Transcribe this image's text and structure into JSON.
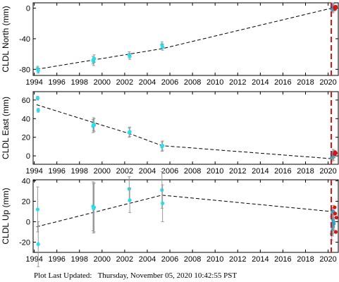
{
  "footer": {
    "label": "Plot Last Updated:",
    "timestamp": "Thursday, November 05, 2020 10:42:55 PST"
  },
  "colors": {
    "campaign": "#22e0f0",
    "continuous": "#2aa3c4",
    "recent": "#dd1111",
    "errorbar": "#999999",
    "trend": "#000000",
    "event_line": "#dd1111"
  },
  "chart_data": [
    {
      "type": "scatter",
      "ylabel": "CLDL North (mm)",
      "xlim": [
        1993.9,
        2020.9
      ],
      "ylim": [
        -88,
        7
      ],
      "xticks": [
        1994,
        1996,
        1998,
        2000,
        2002,
        2004,
        2006,
        2008,
        2010,
        2012,
        2014,
        2016,
        2018,
        2020
      ],
      "yticks": [
        0,
        -40,
        -80
      ],
      "event_line_x": 2020.28,
      "trend": {
        "x": [
          1994.2,
          2005.3,
          2020.3
        ],
        "y": [
          -80,
          -53,
          0
        ]
      },
      "campaign": {
        "x": [
          1994.3,
          1994.35,
          1999.2,
          1999.25,
          1999.3,
          2002.4,
          2002.45,
          2005.3,
          2005.35
        ],
        "y": [
          -79,
          -82,
          -68,
          -70,
          -66,
          -61,
          -63,
          -48,
          -51
        ],
        "err": [
          3,
          3,
          5,
          5,
          5,
          4,
          4,
          4,
          4
        ]
      },
      "continuous": {
        "x": [
          2020.32,
          2020.36,
          2020.4,
          2020.44,
          2020.48,
          2020.52
        ],
        "y": [
          -1,
          1,
          3,
          -2,
          2,
          0
        ],
        "err": [
          4,
          4,
          4,
          4,
          4,
          4
        ]
      },
      "recent": {
        "x": [
          2020.58,
          2020.62,
          2020.68
        ],
        "y": [
          1,
          -1,
          2
        ]
      }
    },
    {
      "type": "scatter",
      "ylabel": "CLDL East (mm)",
      "xlim": [
        1993.9,
        2020.9
      ],
      "ylim": [
        -9,
        69
      ],
      "xticks": [
        1994,
        1996,
        1998,
        2000,
        2002,
        2004,
        2006,
        2008,
        2010,
        2012,
        2014,
        2016,
        2018,
        2020
      ],
      "yticks": [
        60,
        40,
        20,
        0
      ],
      "event_line_x": 2020.28,
      "trend": {
        "x": [
          1994.2,
          1999.2,
          2002.4,
          2005.3,
          2020.3
        ],
        "y": [
          55,
          36,
          24,
          11,
          -3
        ]
      },
      "campaign": {
        "x": [
          1994.3,
          1994.35,
          1999.2,
          1999.25,
          1999.3,
          2002.4,
          2002.45,
          2005.3,
          2005.35
        ],
        "y": [
          62,
          49,
          32,
          34,
          33,
          25,
          26,
          10,
          11
        ],
        "err": [
          2,
          2,
          7,
          7,
          7,
          5,
          5,
          5,
          5
        ]
      },
      "continuous": {
        "x": [
          2020.32,
          2020.36,
          2020.4,
          2020.44,
          2020.48,
          2020.52
        ],
        "y": [
          -2,
          1,
          0,
          3,
          -1,
          2
        ],
        "err": [
          4,
          4,
          4,
          4,
          4,
          4
        ]
      },
      "recent": {
        "x": [
          2020.58,
          2020.62,
          2020.68
        ],
        "y": [
          2,
          4,
          3
        ]
      }
    },
    {
      "type": "scatter",
      "ylabel": "CLDL Up (mm)",
      "xlim": [
        1993.9,
        2020.9
      ],
      "ylim": [
        -30,
        41
      ],
      "xticks": [
        1994,
        1996,
        1998,
        2000,
        2002,
        2004,
        2006,
        2008,
        2010,
        2012,
        2014,
        2016,
        2018,
        2020
      ],
      "yticks": [
        40,
        20,
        0,
        -20
      ],
      "event_line_x": 2020.28,
      "trend": {
        "x": [
          1994.2,
          2005.3,
          2020.3
        ],
        "y": [
          -5,
          26,
          10
        ]
      },
      "campaign": {
        "x": [
          1994.3,
          1994.35,
          1999.2,
          1999.25,
          1999.3,
          2002.4,
          2002.45,
          2005.3,
          2005.35
        ],
        "y": [
          12,
          -22,
          15,
          13,
          14,
          32,
          21,
          31,
          18
        ],
        "err": [
          22,
          22,
          24,
          24,
          24,
          12,
          12,
          18,
          18
        ]
      },
      "continuous": {
        "x": [
          2020.32,
          2020.34,
          2020.36,
          2020.38,
          2020.4,
          2020.42,
          2020.44,
          2020.46,
          2020.48,
          2020.5
        ],
        "y": [
          -12,
          5,
          -3,
          8,
          -8,
          2,
          -5,
          10,
          0,
          -2
        ],
        "err": [
          6,
          6,
          6,
          6,
          6,
          6,
          6,
          6,
          6,
          6
        ]
      },
      "recent": {
        "x": [
          2020.58,
          2020.62,
          2020.68,
          2020.72
        ],
        "y": [
          14,
          8,
          -10,
          4
        ]
      }
    }
  ]
}
